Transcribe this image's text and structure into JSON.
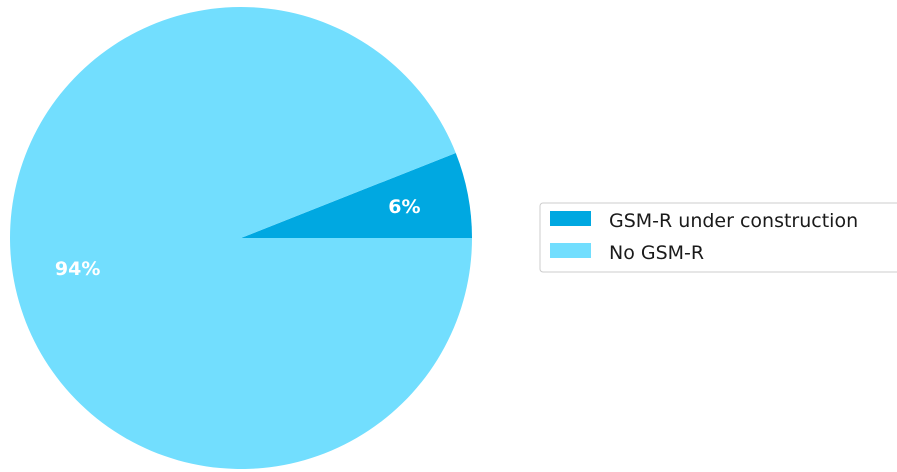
{
  "chart_data": {
    "type": "pie",
    "categories": [
      "GSM-R under construction",
      "No GSM-R"
    ],
    "values": [
      6,
      94
    ],
    "labels": [
      "6%",
      "94%"
    ],
    "colors": [
      "#00A8E1",
      "#72DEFE"
    ],
    "label_color": "#ffffff",
    "legend_placement": "right",
    "title": ""
  }
}
